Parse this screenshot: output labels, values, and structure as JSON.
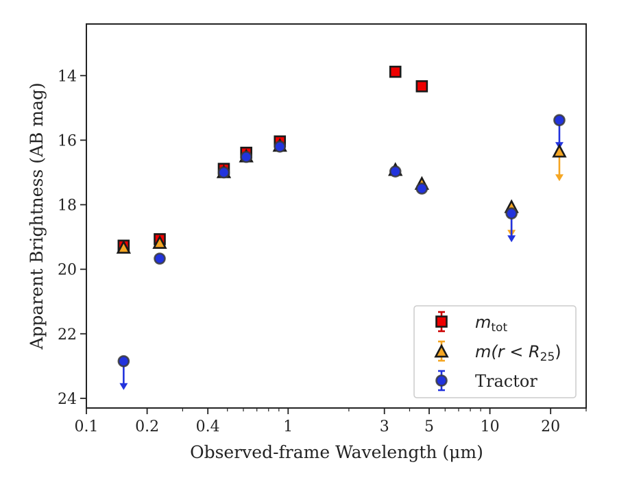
{
  "chart_data": {
    "type": "scatter",
    "xlabel": "Observed-frame Wavelength (μm)",
    "ylabel": "Apparent Brightness (AB mag)",
    "xscale": "log",
    "xlim": [
      0.1,
      30
    ],
    "ylim": [
      24.3,
      12.4
    ],
    "y_inverted": true,
    "x_ticks": [
      {
        "value": 0.1,
        "label": "0.1"
      },
      {
        "value": 0.2,
        "label": "0.2"
      },
      {
        "value": 0.4,
        "label": "0.4"
      },
      {
        "value": 1,
        "label": "1"
      },
      {
        "value": 3,
        "label": "3"
      },
      {
        "value": 5,
        "label": "5"
      },
      {
        "value": 10,
        "label": "10"
      },
      {
        "value": 20,
        "label": "20"
      }
    ],
    "x_minor_ticks": [
      0.3,
      0.5,
      0.6,
      0.7,
      0.8,
      0.9,
      2,
      4,
      6,
      7,
      8,
      9,
      30
    ],
    "y_ticks": [
      {
        "value": 14,
        "label": "14"
      },
      {
        "value": 16,
        "label": "16"
      },
      {
        "value": 18,
        "label": "18"
      },
      {
        "value": 20,
        "label": "20"
      },
      {
        "value": 22,
        "label": "22"
      },
      {
        "value": 24,
        "label": "24"
      }
    ],
    "grid": false,
    "legend_position": "lower-right",
    "series": [
      {
        "name": "m_tot",
        "legend_main": "m",
        "legend_sub": "tot",
        "marker": "square",
        "color": "#ee0000",
        "errcolor": "#cc0000",
        "points": [
          {
            "x": 0.153,
            "y": 19.27,
            "err": 0.1
          },
          {
            "x": 0.231,
            "y": 19.07,
            "err": 0.1
          },
          {
            "x": 0.48,
            "y": 16.89,
            "err": 0.08
          },
          {
            "x": 0.62,
            "y": 16.39,
            "err": 0.08
          },
          {
            "x": 0.91,
            "y": 16.04,
            "err": 0.08
          },
          {
            "x": 3.4,
            "y": 13.88,
            "err": 0.05
          },
          {
            "x": 4.6,
            "y": 14.33,
            "err": 0.05
          }
        ]
      },
      {
        "name": "m(r < R_25)",
        "legend_main": "m(r < R",
        "legend_sub": "25",
        "legend_tail": ")",
        "marker": "triangle",
        "color": "#f5a623",
        "errcolor": "#f5a623",
        "points": [
          {
            "x": 0.153,
            "y": 19.36,
            "err": 0.05
          },
          {
            "x": 0.231,
            "y": 19.21,
            "err": 0.05
          },
          {
            "x": 0.48,
            "y": 17.02,
            "err": 0.05
          },
          {
            "x": 0.62,
            "y": 16.53,
            "err": 0.05
          },
          {
            "x": 0.91,
            "y": 16.2,
            "err": 0.05
          },
          {
            "x": 3.4,
            "y": 16.95,
            "err": 0.05
          },
          {
            "x": 4.6,
            "y": 17.38,
            "err": 0.05
          },
          {
            "x": 12.8,
            "y": 18.1,
            "err": 0.05,
            "upper_limit": true
          },
          {
            "x": 22.1,
            "y": 16.38,
            "err": 0.05,
            "upper_limit": true
          }
        ]
      },
      {
        "name": "Tractor",
        "legend_main": "Tractor",
        "marker": "circle",
        "color": "#2233dd",
        "errcolor": "#2233dd",
        "points": [
          {
            "x": 0.153,
            "y": 22.85,
            "err": 0.05,
            "upper_limit": true
          },
          {
            "x": 0.231,
            "y": 19.67,
            "err": 0.05
          },
          {
            "x": 0.48,
            "y": 17.0,
            "err": 0.05
          },
          {
            "x": 0.62,
            "y": 16.52,
            "err": 0.05
          },
          {
            "x": 0.91,
            "y": 16.2,
            "err": 0.05
          },
          {
            "x": 3.4,
            "y": 16.97,
            "err": 0.05
          },
          {
            "x": 4.6,
            "y": 17.5,
            "err": 0.05
          },
          {
            "x": 12.8,
            "y": 18.27,
            "err": 0.05,
            "upper_limit": true
          },
          {
            "x": 22.1,
            "y": 15.38,
            "err": 0.05,
            "upper_limit": true
          }
        ]
      }
    ]
  }
}
